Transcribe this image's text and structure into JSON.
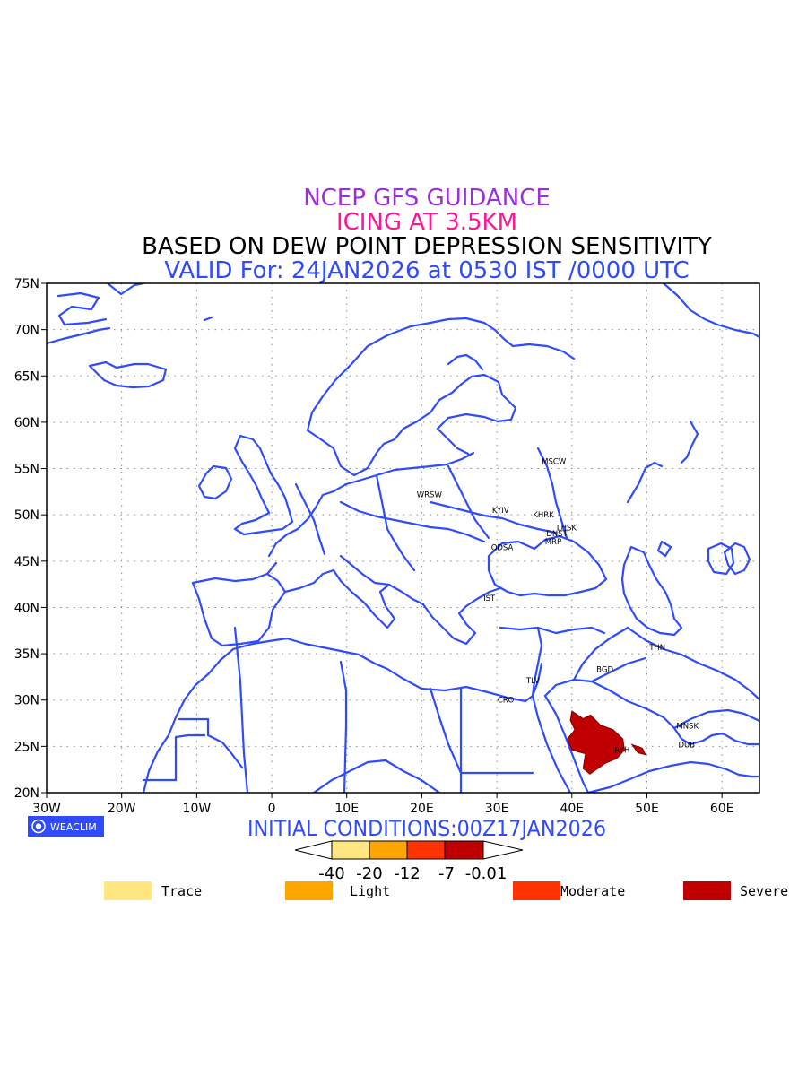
{
  "titles": {
    "line1": "NCEP GFS GUIDANCE",
    "line2": "ICING AT 3.5KM",
    "line3": "BASED ON DEW POINT DEPRESSION SENSITIVITY",
    "line4": "VALID For: 24JAN2026 at 0530 IST /0000 UTC"
  },
  "colors": {
    "title1": "#9b30d9",
    "title2": "#ff1493",
    "title3": "#000000",
    "title4": "#2f4bff",
    "coast": "#2f4bff",
    "trace": "#ffe680",
    "light": "#ffa500",
    "moderate": "#ff3300",
    "severe": "#c00000"
  },
  "map": {
    "lon_range": [
      -30,
      65
    ],
    "lat_range": [
      20,
      75
    ],
    "lon_ticks": [
      "30W",
      "20W",
      "10W",
      "0",
      "10E",
      "20E",
      "30E",
      "40E",
      "50E",
      "60E"
    ],
    "lat_ticks": [
      "20N",
      "25N",
      "30N",
      "35N",
      "40N",
      "45N",
      "50N",
      "55N",
      "60N",
      "65N",
      "70N",
      "75N"
    ],
    "grid": "dotted"
  },
  "stations": [
    {
      "code": "MSCW",
      "lon": 37.6,
      "lat": 55.8
    },
    {
      "code": "WRSW",
      "lon": 21.0,
      "lat": 52.2
    },
    {
      "code": "KYIV",
      "lon": 30.5,
      "lat": 50.5
    },
    {
      "code": "KHRK",
      "lon": 36.2,
      "lat": 50.0
    },
    {
      "code": "LHSK",
      "lon": 39.3,
      "lat": 48.6
    },
    {
      "code": "DNST",
      "lon": 38.0,
      "lat": 48.0
    },
    {
      "code": "MRP",
      "lon": 37.5,
      "lat": 47.1
    },
    {
      "code": "ODSA",
      "lon": 30.7,
      "lat": 46.5
    },
    {
      "code": "IST",
      "lon": 29.0,
      "lat": 41.0
    },
    {
      "code": "THN",
      "lon": 51.4,
      "lat": 35.7
    },
    {
      "code": "BGD",
      "lon": 44.4,
      "lat": 33.3
    },
    {
      "code": "TLV",
      "lon": 34.8,
      "lat": 32.1
    },
    {
      "code": "CRO",
      "lon": 31.2,
      "lat": 30.0
    },
    {
      "code": "MNSK",
      "lon": 55.4,
      "lat": 27.2
    },
    {
      "code": "DUB",
      "lon": 55.3,
      "lat": 25.2
    },
    {
      "code": "RYH",
      "lon": 46.7,
      "lat": 24.6
    }
  ],
  "icing_area": {
    "category": "Severe",
    "region": [
      [
        40.0,
        28.8
      ],
      [
        41.5,
        28.0
      ],
      [
        42.5,
        28.4
      ],
      [
        43.8,
        27.3
      ],
      [
        45.5,
        26.8
      ],
      [
        46.8,
        25.8
      ],
      [
        47.0,
        24.6
      ],
      [
        46.0,
        23.7
      ],
      [
        44.5,
        23.2
      ],
      [
        42.4,
        22.0
      ],
      [
        41.5,
        22.6
      ],
      [
        41.8,
        24.2
      ],
      [
        40.0,
        24.6
      ],
      [
        39.4,
        25.8
      ],
      [
        40.4,
        26.8
      ],
      [
        39.8,
        27.8
      ]
    ],
    "spot": [
      [
        48.0,
        25.2
      ],
      [
        49.4,
        24.8
      ],
      [
        49.8,
        24.1
      ],
      [
        48.8,
        24.3
      ]
    ]
  },
  "init": "INITIAL CONDITIONS:00Z17JAN2026",
  "logo": "WEACLIM",
  "colorbar": {
    "labels": [
      "-40",
      "-20",
      "-12",
      "-7",
      "-0.01"
    ]
  },
  "legend": [
    {
      "label": "Trace",
      "color": "#ffe680"
    },
    {
      "label": "Light",
      "color": "#ffa500"
    },
    {
      "label": "Moderate",
      "color": "#ff3300"
    },
    {
      "label": "Severe",
      "color": "#c00000"
    }
  ]
}
